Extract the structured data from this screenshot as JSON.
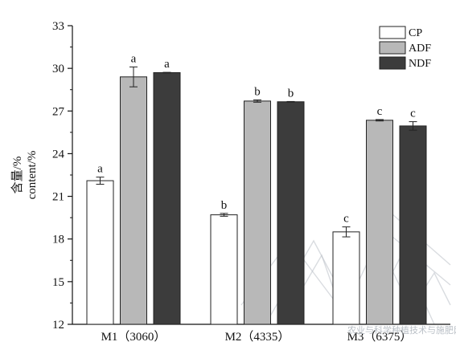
{
  "chart_data": {
    "type": "bar",
    "categories": [
      "M1（3060）",
      "M2（4335）",
      "M3（6375）"
    ],
    "ylabel_lines": [
      "含量/%",
      "content/%"
    ],
    "ylim": [
      12,
      33
    ],
    "yticks": [
      12,
      15,
      18,
      21,
      24,
      27,
      30,
      33
    ],
    "grid": false,
    "legend_position": "top-right",
    "series": [
      {
        "name": "CP",
        "color": "#ffffff",
        "values": [
          22.1,
          19.7,
          18.5
        ],
        "errors": [
          0.25,
          0.1,
          0.35
        ],
        "labels": [
          "a",
          "b",
          "c"
        ]
      },
      {
        "name": "ADF",
        "color": "#b8b8b8",
        "values": [
          29.4,
          27.7,
          26.35
        ],
        "errors": [
          0.7,
          0.08,
          0.05
        ],
        "labels": [
          "a",
          "b",
          "c"
        ]
      },
      {
        "name": "NDF",
        "color": "#3c3c3c",
        "values": [
          29.7,
          27.65,
          25.95
        ],
        "errors": [
          0.02,
          0.02,
          0.3
        ],
        "labels": [
          "a",
          "b",
          "c"
        ]
      }
    ]
  },
  "watermark": {
    "text": "农业与科学种植技术与施肥网 www.cropchina.cn",
    "color": "#b9bfc6"
  }
}
